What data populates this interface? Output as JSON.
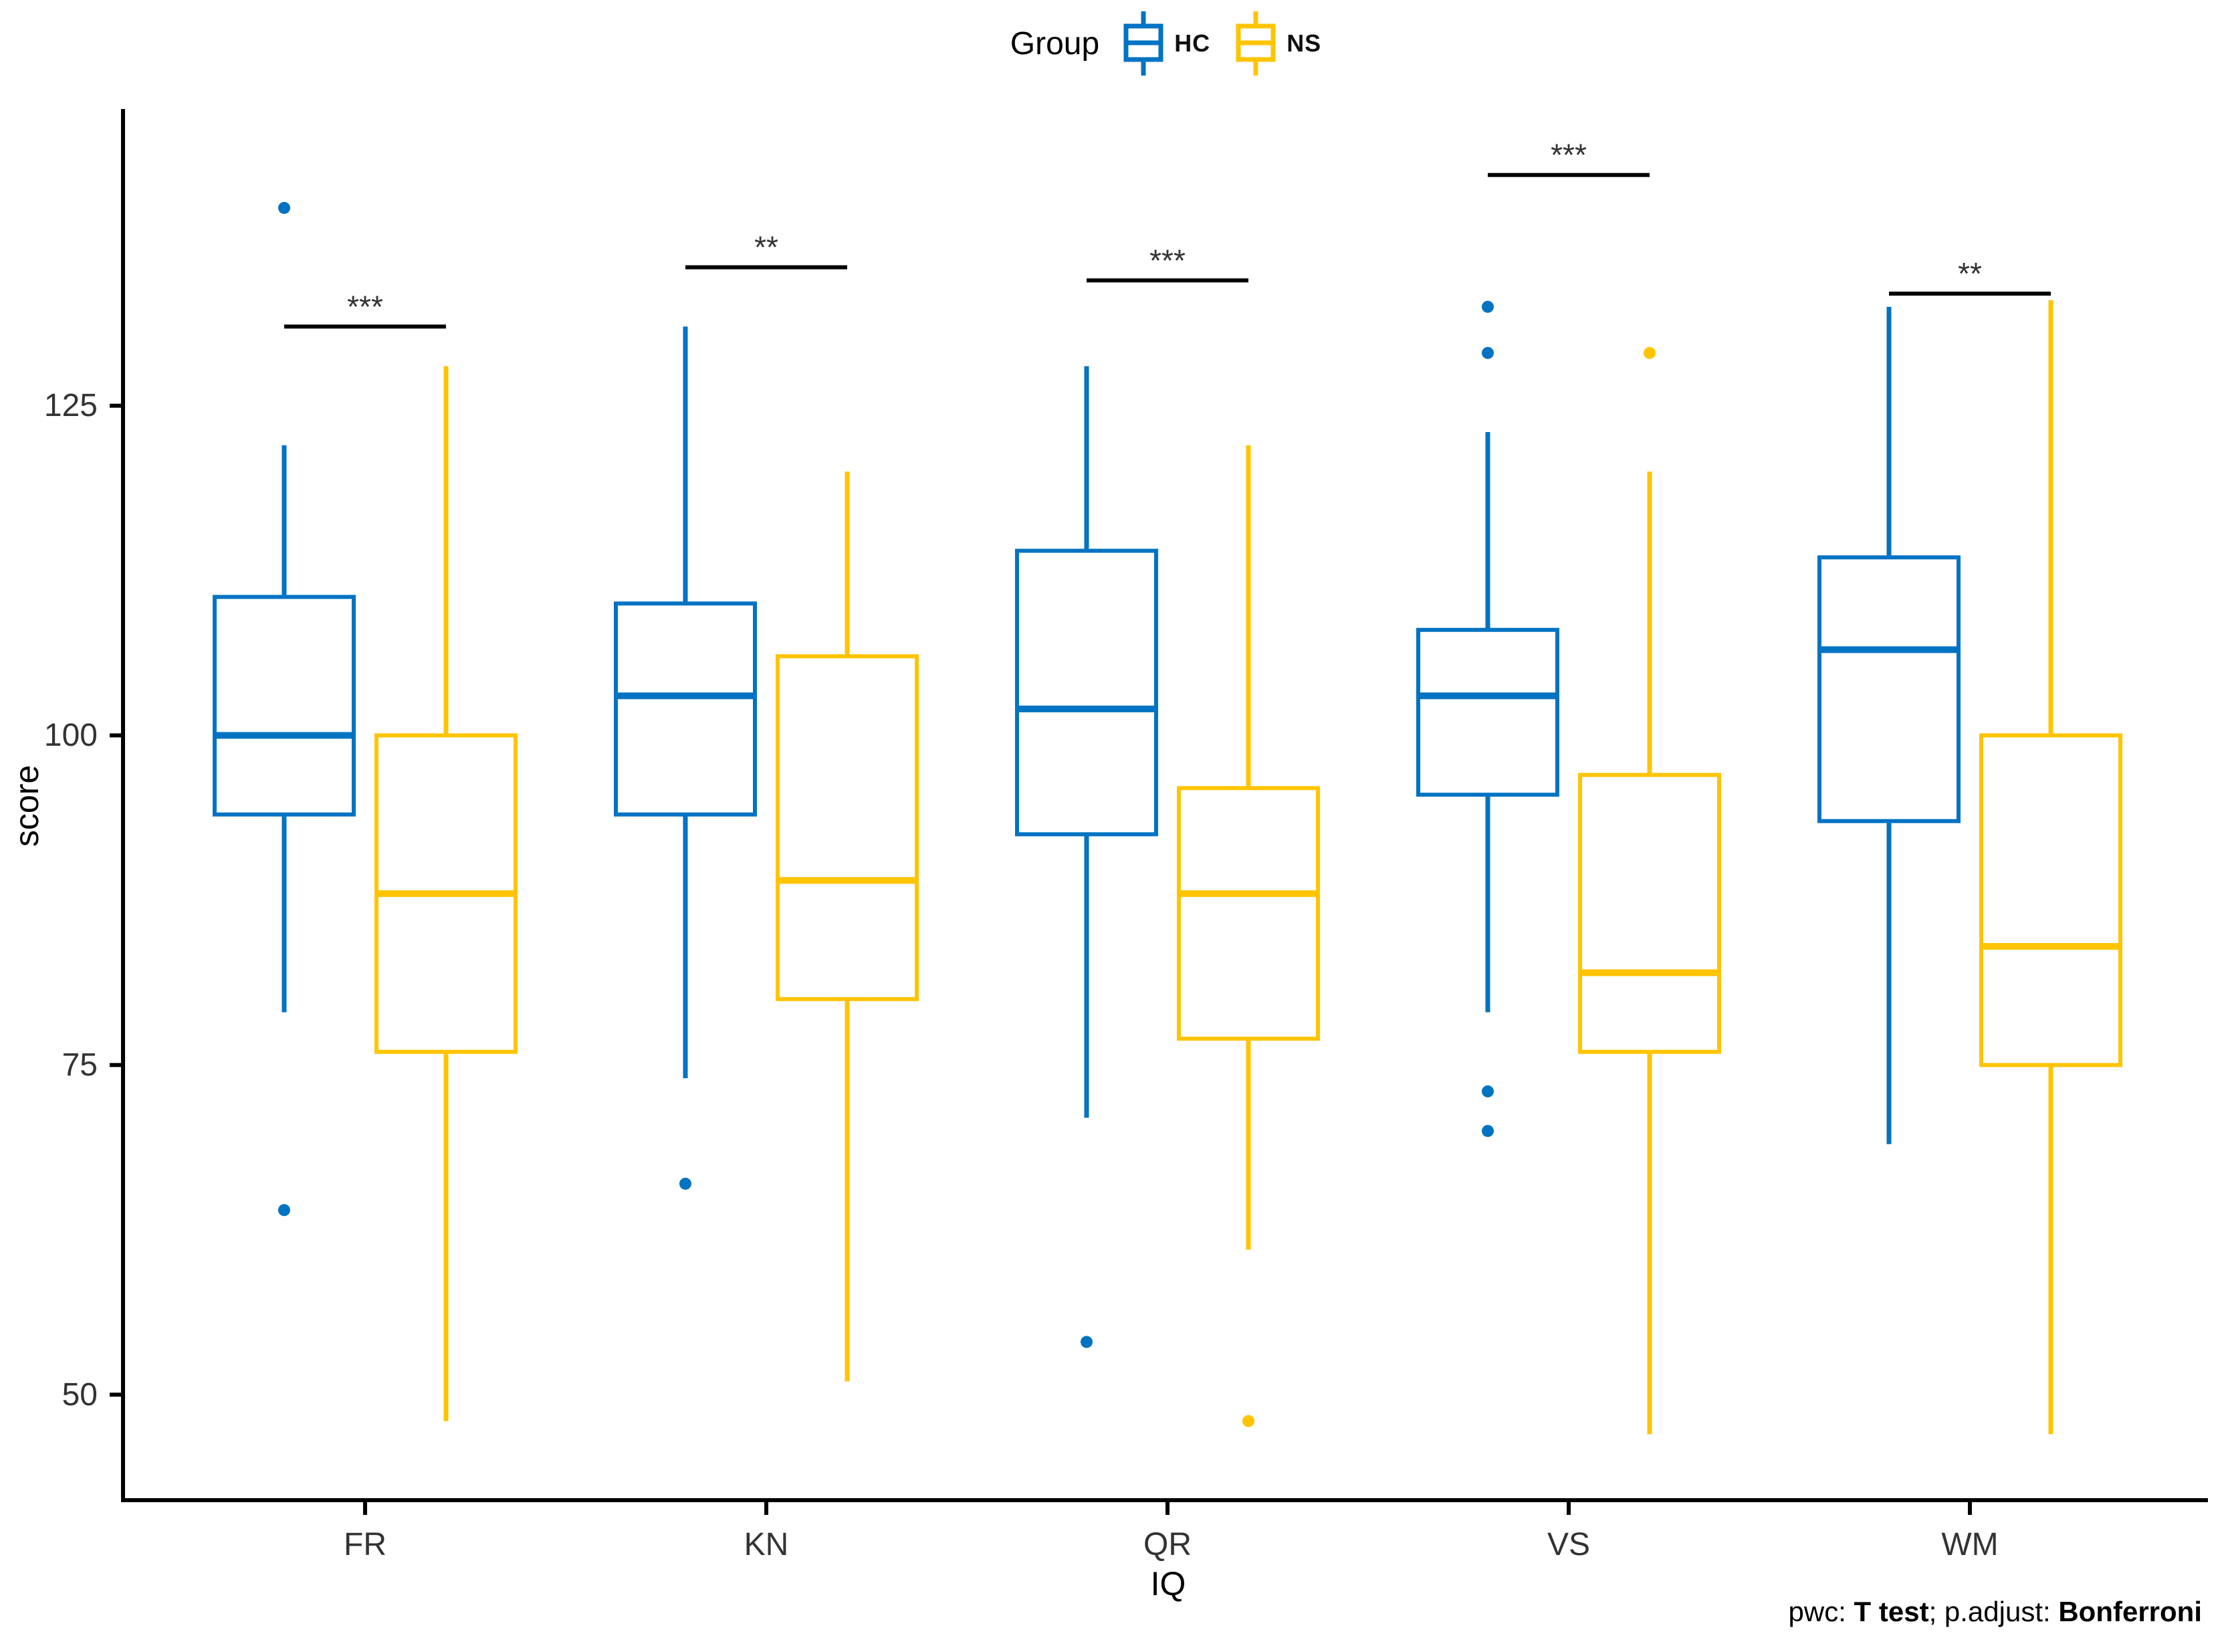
{
  "legend": {
    "title": "Group",
    "items": [
      {
        "label": "HC",
        "color": "#0073C2"
      },
      {
        "label": "NS",
        "color": "#FFC400"
      }
    ]
  },
  "axes": {
    "y_label": "score",
    "x_label": "IQ",
    "y_ticks": [
      125,
      100,
      75,
      50
    ],
    "x_categories": [
      "FR",
      "KN",
      "QR",
      "VS",
      "WM"
    ]
  },
  "caption": {
    "prefix": "pwc: ",
    "method": "T test",
    "separator": "; p.adjust: ",
    "adjustment": "Bonferroni"
  },
  "chart_data": {
    "type": "boxplot",
    "title": "",
    "xlabel": "IQ",
    "ylabel": "score",
    "ylim": [
      42,
      147.5
    ],
    "yticks": [
      50,
      75,
      100,
      125
    ],
    "categories": [
      "FR",
      "KN",
      "QR",
      "VS",
      "WM"
    ],
    "legend_position": "top",
    "grid": false,
    "axis_color": "#000000",
    "text_color": "#333333",
    "groups": [
      {
        "name": "HC",
        "color": "#0073C2",
        "boxes": [
          {
            "category": "FR",
            "whisker_low": 79,
            "q1": 94,
            "median": 100,
            "q3": 110.5,
            "whisker_high": 122,
            "outliers": [
              140,
              64
            ]
          },
          {
            "category": "KN",
            "whisker_low": 74,
            "q1": 94,
            "median": 103,
            "q3": 110,
            "whisker_high": 131,
            "outliers": [
              66
            ]
          },
          {
            "category": "QR",
            "whisker_low": 71,
            "q1": 92.5,
            "median": 102,
            "q3": 114,
            "whisker_high": 128,
            "outliers": [
              54
            ]
          },
          {
            "category": "VS",
            "whisker_low": 79,
            "q1": 95.5,
            "median": 103,
            "q3": 108,
            "whisker_high": 123,
            "outliers": [
              132.5,
              129,
              73,
              70
            ]
          },
          {
            "category": "WM",
            "whisker_low": 69,
            "q1": 93.5,
            "median": 106.5,
            "q3": 113.5,
            "whisker_high": 132.5,
            "outliers": []
          }
        ]
      },
      {
        "name": "NS",
        "color": "#FFC400",
        "boxes": [
          {
            "category": "FR",
            "whisker_low": 48,
            "q1": 76,
            "median": 88,
            "q3": 100,
            "whisker_high": 128,
            "outliers": []
          },
          {
            "category": "KN",
            "whisker_low": 51,
            "q1": 80,
            "median": 89,
            "q3": 106,
            "whisker_high": 120,
            "outliers": []
          },
          {
            "category": "QR",
            "whisker_low": 61,
            "q1": 77,
            "median": 88,
            "q3": 96,
            "whisker_high": 122,
            "outliers": [
              48
            ]
          },
          {
            "category": "VS",
            "whisker_low": 47,
            "q1": 76,
            "median": 82,
            "q3": 97,
            "whisker_high": 120,
            "outliers": [
              129
            ]
          },
          {
            "category": "WM",
            "whisker_low": 47,
            "q1": 75,
            "median": 84,
            "q3": 100,
            "whisker_high": 133,
            "outliers": []
          }
        ]
      }
    ],
    "significance": [
      {
        "category": "FR",
        "label": "***",
        "y": 131
      },
      {
        "category": "KN",
        "label": "**",
        "y": 135.5
      },
      {
        "category": "QR",
        "label": "***",
        "y": 134.5
      },
      {
        "category": "VS",
        "label": "***",
        "y": 142.5
      },
      {
        "category": "WM",
        "label": "**",
        "y": 133.5
      }
    ]
  }
}
